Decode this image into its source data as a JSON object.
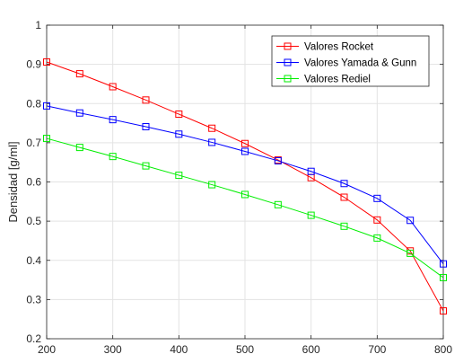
{
  "chart_data": {
    "type": "line",
    "title": "",
    "xlabel": "",
    "ylabel": "Densidad [g/ml]",
    "xlim": [
      200,
      800
    ],
    "ylim": [
      0.2,
      1.0
    ],
    "xticks": [
      200,
      300,
      400,
      500,
      600,
      700,
      800
    ],
    "yticks": [
      0.2,
      0.3,
      0.4,
      0.5,
      0.6,
      0.7,
      0.8,
      0.9,
      1.0
    ],
    "xtick_labels": [
      "200",
      "300",
      "400",
      "500",
      "600",
      "700",
      "800"
    ],
    "ytick_labels": [
      "0.2",
      "0.3",
      "0.4",
      "0.5",
      "0.6",
      "0.7",
      "0.8",
      "0.9",
      "1"
    ],
    "grid": true,
    "legend_position": "top-right",
    "marker": "square",
    "x": [
      200,
      250,
      300,
      350,
      400,
      450,
      500,
      550,
      600,
      650,
      700,
      750,
      800
    ],
    "series": [
      {
        "name": "Valores Rocket",
        "color": "#ff0000",
        "values": [
          0.906,
          0.876,
          0.843,
          0.809,
          0.773,
          0.737,
          0.698,
          0.656,
          0.611,
          0.561,
          0.503,
          0.424,
          0.271
        ]
      },
      {
        "name": "Valores Yamada & Gunn",
        "color": "#0000ff",
        "values": [
          0.794,
          0.776,
          0.759,
          0.741,
          0.722,
          0.701,
          0.678,
          0.654,
          0.627,
          0.596,
          0.558,
          0.502,
          0.391
        ]
      },
      {
        "name": "Valores Rediel",
        "color": "#00ee00",
        "values": [
          0.711,
          0.688,
          0.665,
          0.641,
          0.617,
          0.593,
          0.568,
          0.542,
          0.515,
          0.487,
          0.457,
          0.418,
          0.356
        ]
      }
    ]
  }
}
